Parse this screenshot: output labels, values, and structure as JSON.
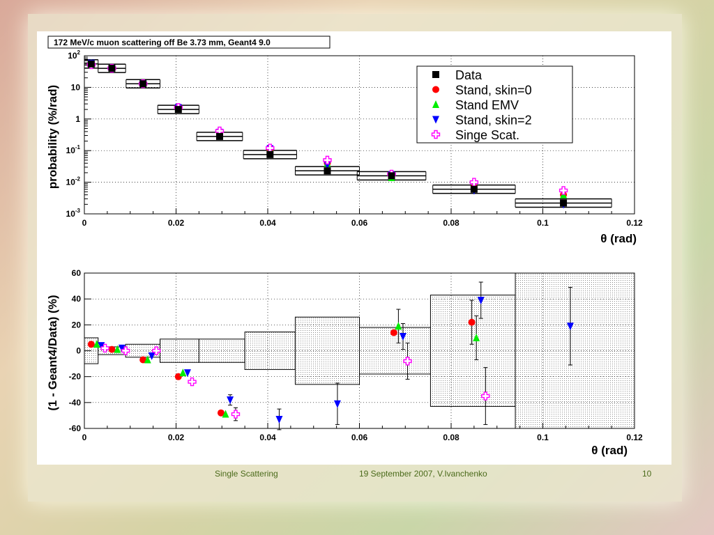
{
  "slide": {
    "footer_left": "Single Scattering",
    "footer_center": "19 September 2007, V.Ivanchenko",
    "page_number": "10"
  },
  "chart_data": [
    {
      "type": "scatter",
      "title": "172 MeV/c muon scattering off Be 3.73 mm, Geant4 9.0",
      "xlabel": "θ (rad)",
      "ylabel": "probability (%/rad)",
      "yscale": "log",
      "xlim": [
        0,
        0.12
      ],
      "ylim": [
        0.001,
        100
      ],
      "x_ticks": [
        "0",
        "0.02",
        "0.04",
        "0.06",
        "0.08",
        "0.1",
        "0.12"
      ],
      "y_ticks": [
        {
          "value": 100,
          "base": "10",
          "exp": "2"
        },
        {
          "value": 10,
          "base": "10",
          "exp": ""
        },
        {
          "value": 1,
          "base": "1",
          "exp": ""
        },
        {
          "value": 0.1,
          "base": "10",
          "exp": "-1"
        },
        {
          "value": 0.01,
          "base": "10",
          "exp": "-2"
        },
        {
          "value": 0.001,
          "base": "10",
          "exp": "-3"
        }
      ],
      "grid": true,
      "legend_position": "top-right",
      "series": [
        {
          "name": "Data",
          "color": "#000000",
          "marker": "square",
          "x": [
            0.0015,
            0.006,
            0.0128,
            0.0205,
            0.0295,
            0.0405,
            0.053,
            0.067,
            0.085,
            0.1045
          ],
          "y": [
            55,
            40,
            13,
            2.0,
            0.28,
            0.075,
            0.023,
            0.016,
            0.006,
            0.0022
          ],
          "xerr": [
            0.0015,
            0.003,
            0.0037,
            0.0045,
            0.005,
            0.0058,
            0.007,
            0.0075,
            0.009,
            0.0105
          ]
        },
        {
          "name": "Stand, skin=0",
          "color": "#ff0000",
          "marker": "circle",
          "x": [
            0.0015,
            0.006,
            0.0128,
            0.0205,
            0.0295,
            0.0405,
            0.053,
            0.067,
            0.085,
            0.1045
          ],
          "y": [
            58,
            40,
            13,
            2.3,
            0.4,
            0.11,
            0.04,
            0.017,
            0.007,
            0.004
          ]
        },
        {
          "name": "Stand EMV",
          "color": "#00ee00",
          "marker": "triangle-up",
          "x": [
            0.0015,
            0.006,
            0.0128,
            0.0205,
            0.0295,
            0.0405,
            0.053,
            0.067,
            0.085,
            0.1045
          ],
          "y": [
            58,
            40,
            13,
            2.3,
            0.4,
            0.11,
            0.04,
            0.014,
            0.0065,
            0.004
          ]
        },
        {
          "name": "Stand, skin=2",
          "color": "#0000ff",
          "marker": "triangle-down",
          "x": [
            0.0015,
            0.006,
            0.0128,
            0.0205,
            0.0295,
            0.0405,
            0.053,
            0.067,
            0.085,
            0.1045
          ],
          "y": [
            58,
            40,
            13,
            2.3,
            0.38,
            0.115,
            0.035,
            0.017,
            0.0055,
            0.002
          ]
        },
        {
          "name": "Singe Scat.",
          "color": "#ff00ff",
          "marker": "cross-open",
          "x": [
            0.0015,
            0.006,
            0.0128,
            0.0205,
            0.0295,
            0.0405,
            0.053,
            0.067,
            0.085,
            0.1045
          ],
          "y": [
            52,
            40,
            13,
            2.3,
            0.42,
            0.12,
            0.05,
            0.018,
            0.01,
            0.0055
          ]
        }
      ]
    },
    {
      "type": "scatter",
      "xlabel": "θ (rad)",
      "ylabel": "(1 - Geant4/Data) (%)",
      "xlim": [
        0,
        0.12
      ],
      "ylim": [
        -60,
        60
      ],
      "x_ticks": [
        "0",
        "0.02",
        "0.04",
        "0.06",
        "0.08",
        "0.1",
        "0.12"
      ],
      "y_ticks": [
        "60",
        "40",
        "20",
        "0",
        "-20",
        "-40",
        "-60"
      ],
      "grid": true,
      "error_bands": [
        {
          "x0": 0.0,
          "x1": 0.003,
          "half": 10
        },
        {
          "x0": 0.003,
          "x1": 0.009,
          "half": 3
        },
        {
          "x0": 0.009,
          "x1": 0.0165,
          "half": 5
        },
        {
          "x0": 0.0165,
          "x1": 0.025,
          "half": 9
        },
        {
          "x0": 0.025,
          "x1": 0.035,
          "half": 9
        },
        {
          "x0": 0.035,
          "x1": 0.046,
          "half": 14.5
        },
        {
          "x0": 0.046,
          "x1": 0.06,
          "half": 26
        },
        {
          "x0": 0.06,
          "x1": 0.0755,
          "half": 18
        },
        {
          "x0": 0.0755,
          "x1": 0.094,
          "half": 43
        },
        {
          "x0": 0.094,
          "x1": 0.12,
          "half": 60
        }
      ],
      "series": [
        {
          "name": "Stand, skin=0",
          "color": "#ff0000",
          "marker": "circle",
          "x": [
            0.0015,
            0.006,
            0.0128,
            0.0205,
            0.0298,
            0.0675,
            0.0845
          ],
          "y": [
            5,
            1,
            -7,
            -20,
            -48,
            14,
            22
          ],
          "yerr": [
            0,
            0,
            0,
            0,
            0,
            0,
            17
          ]
        },
        {
          "name": "Stand EMV",
          "color": "#00ee00",
          "marker": "triangle-up",
          "x": [
            0.0027,
            0.0072,
            0.0138,
            0.0215,
            0.0308,
            0.0685,
            0.0855
          ],
          "y": [
            5,
            1,
            -7,
            -17,
            -49,
            19,
            10
          ],
          "yerr": [
            0,
            0,
            0,
            0,
            0,
            13,
            17
          ]
        },
        {
          "name": "Stand, skin=2",
          "color": "#0000ff",
          "marker": "triangle-down",
          "x": [
            0.0037,
            0.0082,
            0.0147,
            0.0225,
            0.0318,
            0.0425,
            0.0552,
            0.0695,
            0.0865,
            0.106
          ],
          "y": [
            4,
            2,
            -4,
            -17,
            -38,
            -53,
            -41,
            11,
            39,
            19
          ],
          "yerr": [
            0,
            0,
            0,
            0,
            4,
            8,
            16,
            10,
            14,
            30
          ]
        },
        {
          "name": "Singe Scat.",
          "color": "#ff00ff",
          "marker": "cross-open",
          "x": [
            0.0045,
            0.009,
            0.0157,
            0.0235,
            0.033,
            0.0705,
            0.0875
          ],
          "y": [
            2,
            0,
            0,
            -24,
            -49,
            -8,
            -35
          ],
          "yerr": [
            0,
            0,
            0,
            0,
            5,
            14,
            22
          ]
        }
      ]
    }
  ]
}
